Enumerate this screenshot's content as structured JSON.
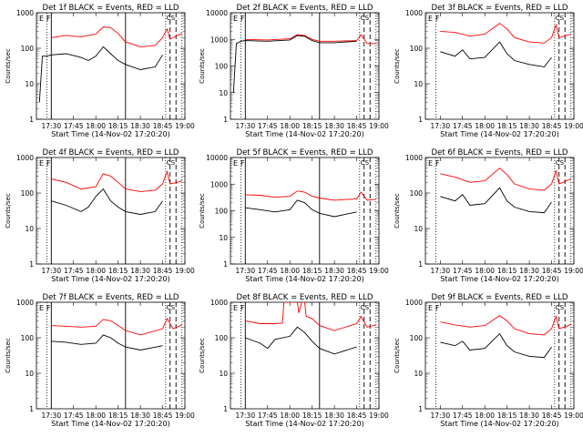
{
  "figure": {
    "start_time": "Start Time (14-Nov-02 17:20:20)",
    "ylabel": "Counts/sec",
    "corner_flags": [
      "E",
      "F"
    ],
    "corner_mark": "CS"
  },
  "chart_data": [
    {
      "type": "line",
      "title": "Det 1f BLACK = Events, RED = LLD",
      "xlabel": "Start Time (14-Nov-02 17:20:20)",
      "ylabel": "Counts/sec",
      "yscale": "log",
      "ylim": [
        1,
        1000
      ],
      "xlim": [
        "17:20",
        "19:00"
      ],
      "x_ticks": [
        "17:30",
        "17:45",
        "18:00",
        "18:15",
        "18:30",
        "18:45",
        "19:00"
      ],
      "y_ticks": [
        "1",
        "10",
        "100",
        "1000"
      ],
      "solid_lines": [
        "17:30",
        "18:20"
      ],
      "dashed_lines": [
        "18:50",
        "18:54"
      ],
      "dotted_lines": [
        "17:27",
        "18:47",
        "18:58"
      ],
      "series": [
        {
          "color": "#ff0000",
          "x": [
            "17:30",
            "17:40",
            "17:50",
            "18:00",
            "18:05",
            "18:10",
            "18:15",
            "18:20",
            "18:30",
            "18:40",
            "18:45",
            "18:48",
            "18:50",
            "18:55",
            "18:58"
          ],
          "y": [
            200,
            230,
            210,
            250,
            400,
            380,
            260,
            150,
            110,
            120,
            200,
            350,
            180,
            230,
            260
          ]
        },
        {
          "color": "#000000",
          "x": [
            "17:22",
            "17:24",
            "17:27",
            "17:30",
            "17:40",
            "17:50",
            "17:55",
            "18:00",
            "18:05",
            "18:10",
            "18:15",
            "18:20",
            "18:30",
            "18:40",
            "18:45"
          ],
          "y": [
            3,
            60,
            60,
            65,
            70,
            55,
            45,
            60,
            110,
            70,
            45,
            35,
            25,
            30,
            65
          ]
        }
      ]
    },
    {
      "type": "line",
      "title": "Det 2f BLACK = Events, RED = LLD",
      "xlabel": "Start Time (14-Nov-02 17:20:20)",
      "ylabel": "Counts/sec",
      "yscale": "log",
      "ylim": [
        1,
        10000
      ],
      "xlim": [
        "17:20",
        "19:00"
      ],
      "x_ticks": [
        "17:30",
        "17:45",
        "18:00",
        "18:15",
        "18:30",
        "18:45",
        "19:00"
      ],
      "y_ticks": [
        "1",
        "10",
        "100",
        "1000",
        "10000"
      ],
      "solid_lines": [
        "17:30",
        "18:20"
      ],
      "dashed_lines": [
        "18:50",
        "18:54"
      ],
      "dotted_lines": [
        "17:27",
        "18:47",
        "18:58"
      ],
      "series": [
        {
          "color": "#ff0000",
          "x": [
            "17:30",
            "17:45",
            "18:00",
            "18:05",
            "18:10",
            "18:15",
            "18:20",
            "18:30",
            "18:45",
            "18:48",
            "18:52",
            "18:58"
          ],
          "y": [
            1000,
            950,
            1050,
            1500,
            1400,
            1000,
            850,
            850,
            900,
            1500,
            700,
            700
          ]
        },
        {
          "color": "#000000",
          "x": [
            "17:22",
            "17:24",
            "17:27",
            "17:30",
            "17:45",
            "18:00",
            "18:05",
            "18:10",
            "18:15",
            "18:20",
            "18:30",
            "18:45"
          ],
          "y": [
            10,
            700,
            850,
            900,
            850,
            950,
            1400,
            1300,
            900,
            750,
            750,
            850
          ]
        }
      ]
    },
    {
      "type": "line",
      "title": "Det 3f BLACK = Events, RED = LLD",
      "xlabel": "Start Time (14-Nov-02 17:20:20)",
      "ylabel": "Counts/sec",
      "yscale": "log",
      "ylim": [
        1,
        1000
      ],
      "xlim": [
        "17:20",
        "19:00"
      ],
      "x_ticks": [
        "17:30",
        "17:45",
        "18:00",
        "18:15",
        "18:30",
        "18:45",
        "19:00"
      ],
      "y_ticks": [
        "1",
        "10",
        "100",
        "1000"
      ],
      "solid_lines": [],
      "dashed_lines": [
        "18:50",
        "18:54"
      ],
      "dotted_lines": [
        "17:27",
        "18:47",
        "18:58"
      ],
      "series": [
        {
          "color": "#ff0000",
          "x": [
            "17:30",
            "17:40",
            "17:50",
            "18:00",
            "18:10",
            "18:15",
            "18:20",
            "18:30",
            "18:40",
            "18:45",
            "18:48",
            "18:50",
            "18:55",
            "18:58"
          ],
          "y": [
            300,
            280,
            220,
            250,
            500,
            350,
            200,
            150,
            140,
            200,
            450,
            200,
            230,
            250
          ]
        },
        {
          "color": "#000000",
          "x": [
            "17:30",
            "17:40",
            "17:45",
            "17:50",
            "18:00",
            "18:10",
            "18:15",
            "18:20",
            "18:30",
            "18:40",
            "18:45"
          ],
          "y": [
            80,
            60,
            90,
            50,
            55,
            150,
            70,
            45,
            35,
            30,
            55
          ]
        }
      ]
    },
    {
      "type": "line",
      "title": "Det 4f BLACK = Events, RED = LLD",
      "xlabel": "Start Time (14-Nov-02 17:20:20)",
      "ylabel": "Counts/sec",
      "yscale": "log",
      "ylim": [
        1,
        1000
      ],
      "xlim": [
        "17:20",
        "19:00"
      ],
      "x_ticks": [
        "17:30",
        "17:45",
        "18:00",
        "18:15",
        "18:30",
        "18:45",
        "19:00"
      ],
      "y_ticks": [
        "1",
        "10",
        "100",
        "1000"
      ],
      "solid_lines": [
        "17:30",
        "18:20"
      ],
      "dashed_lines": [
        "18:50",
        "18:54"
      ],
      "dotted_lines": [
        "17:27",
        "18:47",
        "18:58"
      ],
      "series": [
        {
          "color": "#ff0000",
          "x": [
            "17:30",
            "17:40",
            "17:50",
            "18:00",
            "18:05",
            "18:10",
            "18:15",
            "18:20",
            "18:30",
            "18:40",
            "18:45",
            "18:48",
            "18:50",
            "18:55",
            "18:58"
          ],
          "y": [
            250,
            200,
            130,
            150,
            350,
            300,
            200,
            130,
            110,
            120,
            180,
            400,
            180,
            200,
            220
          ]
        },
        {
          "color": "#000000",
          "x": [
            "17:30",
            "17:40",
            "17:50",
            "17:55",
            "18:00",
            "18:05",
            "18:10",
            "18:15",
            "18:20",
            "18:30",
            "18:40",
            "18:45"
          ],
          "y": [
            60,
            45,
            30,
            40,
            80,
            130,
            60,
            40,
            30,
            25,
            30,
            60
          ]
        }
      ]
    },
    {
      "type": "line",
      "title": "Det 5f BLACK = Events, RED = LLD",
      "xlabel": "Start Time (14-Nov-02 17:20:20)",
      "ylabel": "Counts/sec",
      "yscale": "log",
      "ylim": [
        1,
        10000
      ],
      "xlim": [
        "17:20",
        "19:00"
      ],
      "x_ticks": [
        "17:30",
        "17:45",
        "18:00",
        "18:15",
        "18:30",
        "18:45",
        "19:00"
      ],
      "y_ticks": [
        "1",
        "10",
        "100",
        "1000",
        "10000"
      ],
      "solid_lines": [
        "17:30",
        "18:20"
      ],
      "dashed_lines": [
        "18:50",
        "18:54"
      ],
      "dotted_lines": [
        "17:27",
        "18:47",
        "18:58"
      ],
      "series": [
        {
          "color": "#ff0000",
          "x": [
            "17:30",
            "17:40",
            "17:50",
            "18:00",
            "18:05",
            "18:10",
            "18:15",
            "18:20",
            "18:30",
            "18:45",
            "18:48",
            "18:52",
            "18:58"
          ],
          "y": [
            400,
            380,
            320,
            350,
            550,
            500,
            350,
            300,
            250,
            280,
            500,
            250,
            270
          ]
        },
        {
          "color": "#000000",
          "x": [
            "17:30",
            "17:40",
            "17:50",
            "18:00",
            "18:05",
            "18:10",
            "18:15",
            "18:20",
            "18:30",
            "18:45"
          ],
          "y": [
            130,
            110,
            90,
            110,
            250,
            200,
            110,
            80,
            60,
            90
          ]
        }
      ]
    },
    {
      "type": "line",
      "title": "Det 6f BLACK = Events, RED = LLD",
      "xlabel": "Start Time (14-Nov-02 17:20:20)",
      "ylabel": "Counts/sec",
      "yscale": "log",
      "ylim": [
        1,
        1000
      ],
      "xlim": [
        "17:20",
        "19:00"
      ],
      "x_ticks": [
        "17:30",
        "17:45",
        "18:00",
        "18:15",
        "18:30",
        "18:45",
        "19:00"
      ],
      "y_ticks": [
        "1",
        "10",
        "100",
        "1000"
      ],
      "solid_lines": [],
      "dashed_lines": [
        "18:50",
        "18:54"
      ],
      "dotted_lines": [
        "17:27",
        "18:47",
        "18:58"
      ],
      "series": [
        {
          "color": "#ff0000",
          "x": [
            "17:30",
            "17:40",
            "17:50",
            "18:00",
            "18:10",
            "18:15",
            "18:20",
            "18:30",
            "18:40",
            "18:45",
            "18:48",
            "18:50",
            "18:55",
            "18:58"
          ],
          "y": [
            350,
            280,
            200,
            220,
            500,
            330,
            180,
            130,
            120,
            180,
            420,
            180,
            220,
            250
          ]
        },
        {
          "color": "#000000",
          "x": [
            "17:30",
            "17:40",
            "17:45",
            "17:50",
            "18:00",
            "18:10",
            "18:15",
            "18:20",
            "18:30",
            "18:40",
            "18:45"
          ],
          "y": [
            80,
            60,
            90,
            45,
            50,
            140,
            60,
            40,
            30,
            28,
            55
          ]
        }
      ]
    },
    {
      "type": "line",
      "title": "Det 7f BLACK = Events, RED = LLD",
      "xlabel": "Start Time (14-Nov-02 17:20:20)",
      "ylabel": "Counts/sec",
      "yscale": "log",
      "ylim": [
        1,
        1000
      ],
      "xlim": [
        "17:20",
        "19:00"
      ],
      "x_ticks": [
        "17:30",
        "17:45",
        "18:00",
        "18:15",
        "18:30",
        "18:45",
        "19:00"
      ],
      "y_ticks": [
        "1",
        "10",
        "100",
        "1000"
      ],
      "solid_lines": [
        "17:30",
        "18:20"
      ],
      "dashed_lines": [
        "18:50",
        "18:54"
      ],
      "dotted_lines": [
        "17:27",
        "18:47",
        "18:58"
      ],
      "series": [
        {
          "color": "#ff0000",
          "x": [
            "17:30",
            "17:40",
            "17:50",
            "18:00",
            "18:05",
            "18:10",
            "18:15",
            "18:20",
            "18:30",
            "18:45",
            "18:48",
            "18:52",
            "18:58"
          ],
          "y": [
            220,
            210,
            200,
            210,
            330,
            300,
            220,
            160,
            120,
            180,
            350,
            180,
            230
          ]
        },
        {
          "color": "#000000",
          "x": [
            "17:30",
            "17:40",
            "17:50",
            "18:00",
            "18:05",
            "18:10",
            "18:15",
            "18:20",
            "18:30",
            "18:45"
          ],
          "y": [
            80,
            75,
            65,
            70,
            120,
            100,
            70,
            55,
            45,
            60
          ]
        }
      ]
    },
    {
      "type": "line",
      "title": "Det 8f BLACK = Events, RED = LLD",
      "xlabel": "Start Time (14-Nov-02 17:20:20)",
      "ylabel": "Counts/sec",
      "yscale": "log",
      "ylim": [
        1,
        1000
      ],
      "xlim": [
        "17:20",
        "19:00"
      ],
      "x_ticks": [
        "17:30",
        "17:45",
        "18:00",
        "18:15",
        "18:30",
        "18:45",
        "19:00"
      ],
      "y_ticks": [
        "1",
        "10",
        "100",
        "1000"
      ],
      "solid_lines": [
        "17:30",
        "18:20"
      ],
      "dashed_lines": [
        "18:50",
        "18:54"
      ],
      "dotted_lines": [
        "17:27",
        "18:47",
        "18:58"
      ],
      "series": [
        {
          "color": "#ff0000",
          "x": [
            "17:30",
            "17:40",
            "17:50",
            "17:55",
            "17:56",
            "18:00",
            "18:05",
            "18:06",
            "18:08",
            "18:10",
            "18:11",
            "18:15",
            "18:20",
            "18:30",
            "18:45",
            "18:48",
            "18:52",
            "18:58"
          ],
          "y": [
            300,
            250,
            250,
            260,
            1000,
            1000,
            1000,
            500,
            1000,
            1000,
            400,
            350,
            220,
            160,
            250,
            400,
            200,
            230
          ]
        },
        {
          "color": "#000000",
          "x": [
            "17:30",
            "17:40",
            "17:45",
            "17:50",
            "18:00",
            "18:05",
            "18:10",
            "18:15",
            "18:20",
            "18:30",
            "18:45"
          ],
          "y": [
            100,
            70,
            50,
            90,
            110,
            200,
            140,
            80,
            50,
            35,
            55
          ]
        }
      ]
    },
    {
      "type": "line",
      "title": "Det 9f BLACK = Events, RED = LLD",
      "xlabel": "Start Time (14-Nov-02 17:20:20)",
      "ylabel": "Counts/sec",
      "yscale": "log",
      "ylim": [
        1,
        1000
      ],
      "xlim": [
        "17:20",
        "19:00"
      ],
      "x_ticks": [
        "17:30",
        "17:45",
        "18:00",
        "18:15",
        "18:30",
        "18:45",
        "19:00"
      ],
      "y_ticks": [
        "1",
        "10",
        "100",
        "1000"
      ],
      "solid_lines": [],
      "dashed_lines": [
        "18:50",
        "18:54"
      ],
      "dotted_lines": [
        "17:27",
        "18:47",
        "18:58"
      ],
      "series": [
        {
          "color": "#ff0000",
          "x": [
            "17:30",
            "17:40",
            "17:50",
            "18:00",
            "18:10",
            "18:15",
            "18:20",
            "18:30",
            "18:40",
            "18:45",
            "18:48",
            "18:50",
            "18:55",
            "18:58"
          ],
          "y": [
            280,
            230,
            200,
            220,
            420,
            300,
            180,
            130,
            120,
            180,
            400,
            180,
            210,
            240
          ]
        },
        {
          "color": "#000000",
          "x": [
            "17:30",
            "17:40",
            "17:45",
            "17:50",
            "18:00",
            "18:10",
            "18:15",
            "18:20",
            "18:30",
            "18:40",
            "18:45"
          ],
          "y": [
            75,
            60,
            80,
            45,
            50,
            130,
            60,
            40,
            30,
            28,
            55
          ]
        }
      ]
    }
  ]
}
